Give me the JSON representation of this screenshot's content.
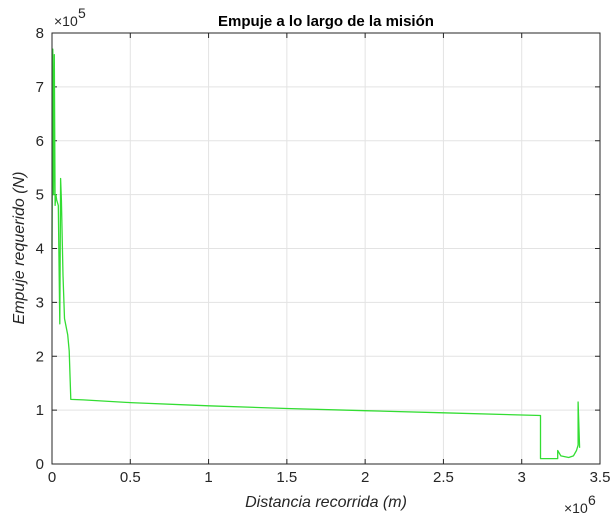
{
  "chart_data": {
    "type": "line",
    "title": "Empuje a lo largo de la misión",
    "xlabel": "Distancia recorrida (m)",
    "ylabel": "Empuje requerido (N)",
    "x_multiplier_label": "×10",
    "x_multiplier_exp": "6",
    "y_multiplier_label": "×10",
    "y_multiplier_exp": "5",
    "x_scale": 1000000,
    "y_scale": 100000,
    "xlim": [
      0,
      3500000
    ],
    "ylim": [
      0,
      800000
    ],
    "xticks": [
      0,
      500000,
      1000000,
      1500000,
      2000000,
      2500000,
      3000000,
      3500000
    ],
    "xtick_labels": [
      "0",
      "0.5",
      "1",
      "1.5",
      "2",
      "2.5",
      "3",
      "3.5"
    ],
    "yticks": [
      0,
      100000,
      200000,
      300000,
      400000,
      500000,
      600000,
      700000,
      800000
    ],
    "ytick_labels": [
      "0",
      "1",
      "2",
      "3",
      "4",
      "5",
      "6",
      "7",
      "8"
    ],
    "grid": true,
    "series": [
      {
        "color": "#33dd33",
        "x": [
          0,
          5000,
          10000,
          15000,
          20000,
          25000,
          30000,
          40000,
          50000,
          55000,
          60000,
          70000,
          80000,
          100000,
          110000,
          120000,
          200000,
          500000,
          1000000,
          1500000,
          2000000,
          2500000,
          3000000,
          3120000,
          3120000,
          3200000,
          3230000,
          3230000,
          3250000,
          3300000,
          3330000,
          3350000,
          3360000,
          3360000,
          3370000
        ],
        "y": [
          400000,
          770000,
          500000,
          760000,
          480000,
          500000,
          490000,
          480000,
          260000,
          530000,
          490000,
          350000,
          270000,
          240000,
          210000,
          120000,
          119000,
          114000,
          108000,
          103000,
          99000,
          95000,
          91000,
          90000,
          10000,
          10000,
          10000,
          25000,
          15000,
          12000,
          15000,
          25000,
          35000,
          115000,
          30000
        ]
      }
    ]
  }
}
